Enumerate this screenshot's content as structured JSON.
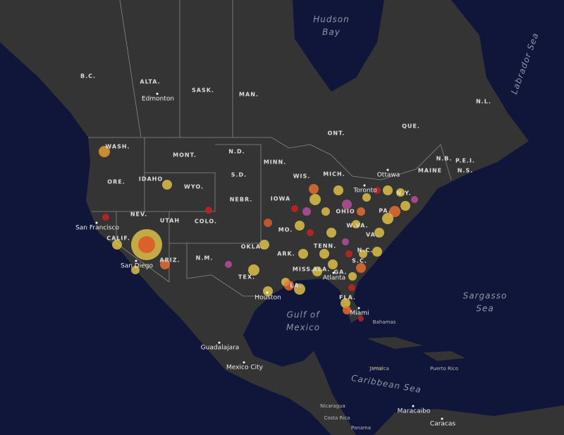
{
  "water": [
    "Hudson",
    "Bay",
    "Labrador Sea",
    "Gulf of",
    "Mexico",
    "Sargasso",
    "Sea",
    "Caribbean Sea"
  ],
  "provinces": [
    "B.C.",
    "ALTA.",
    "SASK.",
    "MAN.",
    "ONT.",
    "QUE.",
    "N.L.",
    "N.B.",
    "P.E.I.",
    "N.S."
  ],
  "states": [
    "WASH.",
    "MONT.",
    "N.D.",
    "MINN.",
    "IDAHO",
    "WYO.",
    "S.D.",
    "ORE.",
    "WIS.",
    "MICH.",
    "MAINE",
    "NEBR.",
    "IOWA",
    "NEV.",
    "UTAH",
    "COLO.",
    "OHIO",
    "PA.",
    "CALIF.",
    "MO.",
    "W.VA.",
    "OKLA.",
    "TENN.",
    "ARK.",
    "N.C.",
    "S.C.",
    "ARIZ.",
    "N.M.",
    "TEX.",
    "MISS.",
    "ALA.",
    "GA.",
    "LA.",
    "FLA.",
    "N.Y.",
    "VA."
  ],
  "cities": [
    "Edmonton",
    "Ottawa",
    "Toronto",
    "San Francisco",
    "San Diego",
    "Atlanta",
    "Houston",
    "Miami",
    "Guadalajara",
    "Mexico City",
    "Maracaibo",
    "Caracas"
  ],
  "countries": [
    "Bahamas",
    "Jamaica",
    "Puerto Rico",
    "Nicaragua",
    "Costa Rica",
    "Panama"
  ]
}
